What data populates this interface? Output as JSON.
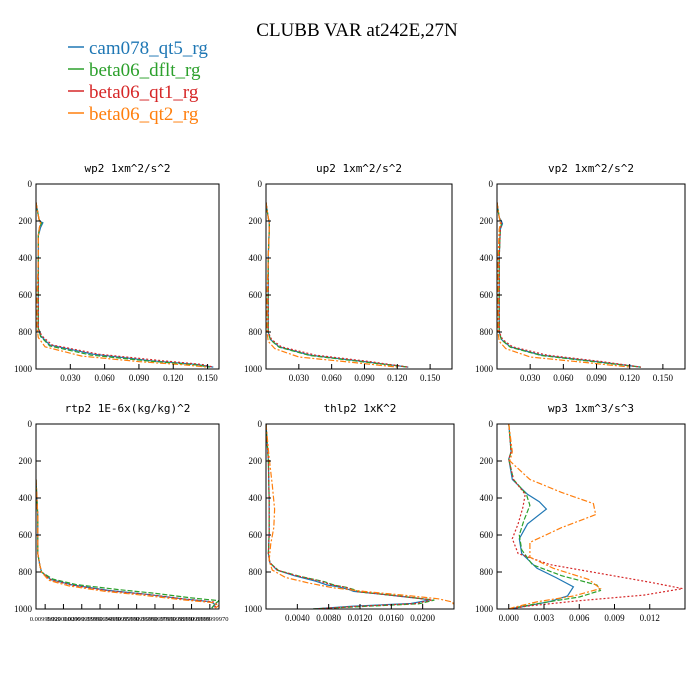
{
  "figure": {
    "title": "CLUBB VAR at242E,27N"
  },
  "legend": [
    {
      "name": "cam078_qt5_rg",
      "color": "#1f77b4"
    },
    {
      "name": "beta06_dflt_rg",
      "color": "#2ca02c"
    },
    {
      "name": "beta06_qt1_rg",
      "color": "#d62728"
    },
    {
      "name": "beta06_qt2_rg",
      "color": "#ff7f0e"
    }
  ],
  "chart_data": [
    {
      "type": "line",
      "title": "wp2  1xm^2/s^2",
      "xlim": [
        0,
        0.16
      ],
      "ylim": [
        1000,
        0
      ],
      "xticks": [
        0.03,
        0.06,
        0.09,
        0.12,
        0.15
      ],
      "xtick_labels": [
        "0.030",
        "0.060",
        "0.090",
        "0.120",
        "0.150"
      ],
      "yticks": [
        0,
        200,
        400,
        600,
        800,
        1000
      ],
      "ytick_labels": [
        "0",
        "200",
        "400",
        "600",
        "800",
        "1000"
      ],
      "series": [
        {
          "name": "cam078_qt5_rg",
          "x": [
            0,
            0.002,
            0.003,
            0.006,
            0.004,
            0.002,
            0.002,
            0.002,
            0.002,
            0.004,
            0.012,
            0.05,
            0.1,
            0.14,
            0.155
          ],
          "y": [
            100,
            170,
            200,
            210,
            235,
            280,
            400,
            600,
            780,
            820,
            870,
            920,
            955,
            975,
            990
          ]
        },
        {
          "name": "beta06_dflt_rg",
          "x": [
            0,
            0.002,
            0.003,
            0.005,
            0.003,
            0.002,
            0.002,
            0.002,
            0.002,
            0.004,
            0.012,
            0.048,
            0.1,
            0.14,
            0.152
          ],
          "y": [
            100,
            170,
            200,
            210,
            235,
            280,
            400,
            600,
            780,
            825,
            875,
            925,
            958,
            978,
            990
          ]
        },
        {
          "name": "beta06_qt1_rg",
          "x": [
            0,
            0.002,
            0.003,
            0.004,
            0.003,
            0.002,
            0.002,
            0.002,
            0.002,
            0.005,
            0.014,
            0.055,
            0.11,
            0.145,
            0.155
          ],
          "y": [
            100,
            170,
            200,
            210,
            235,
            280,
            400,
            600,
            780,
            820,
            870,
            920,
            955,
            975,
            990
          ]
        },
        {
          "name": "beta06_qt2_rg",
          "x": [
            0,
            0.002,
            0.003,
            0.004,
            0.003,
            0.002,
            0.002,
            0.001,
            0.001,
            0.002,
            0.008,
            0.04,
            0.09,
            0.13,
            0.15
          ],
          "y": [
            100,
            170,
            200,
            210,
            235,
            280,
            400,
            600,
            780,
            830,
            880,
            930,
            960,
            978,
            990
          ]
        }
      ]
    },
    {
      "type": "line",
      "title": "up2  1xm^2/s^2",
      "xlim": [
        0,
        0.17
      ],
      "ylim": [
        1000,
        0
      ],
      "xticks": [
        0.03,
        0.06,
        0.09,
        0.12,
        0.15
      ],
      "xtick_labels": [
        "0.030",
        "0.060",
        "0.090",
        "0.120",
        "0.150"
      ],
      "yticks": [
        0,
        200,
        400,
        600,
        800,
        1000
      ],
      "ytick_labels": [
        "0",
        "200",
        "400",
        "600",
        "800",
        "1000"
      ],
      "series": [
        {
          "name": "cam078_qt5_rg",
          "x": [
            0,
            0.002,
            0.003,
            0.003,
            0.002,
            0.002,
            0.002,
            0.004,
            0.012,
            0.04,
            0.09,
            0.13
          ],
          "y": [
            100,
            180,
            210,
            240,
            400,
            600,
            800,
            840,
            880,
            925,
            960,
            990
          ]
        },
        {
          "name": "beta06_dflt_rg",
          "x": [
            0,
            0.002,
            0.003,
            0.003,
            0.002,
            0.002,
            0.002,
            0.004,
            0.012,
            0.04,
            0.09,
            0.13
          ],
          "y": [
            100,
            180,
            210,
            240,
            400,
            600,
            800,
            842,
            882,
            927,
            962,
            990
          ]
        },
        {
          "name": "beta06_qt1_rg",
          "x": [
            0,
            0.002,
            0.003,
            0.003,
            0.002,
            0.002,
            0.002,
            0.005,
            0.014,
            0.045,
            0.095,
            0.13
          ],
          "y": [
            100,
            180,
            210,
            240,
            400,
            600,
            800,
            840,
            880,
            925,
            960,
            990
          ]
        },
        {
          "name": "beta06_qt2_rg",
          "x": [
            0,
            0.002,
            0.003,
            0.003,
            0.002,
            0.001,
            0.001,
            0.002,
            0.008,
            0.03,
            0.08,
            0.12
          ],
          "y": [
            100,
            180,
            210,
            240,
            400,
            600,
            800,
            850,
            890,
            935,
            965,
            990
          ]
        }
      ]
    },
    {
      "type": "line",
      "title": "vp2  1xm^2/s^2",
      "xlim": [
        0,
        0.17
      ],
      "ylim": [
        1000,
        0
      ],
      "xticks": [
        0.03,
        0.06,
        0.09,
        0.12,
        0.15
      ],
      "xtick_labels": [
        "0.030",
        "0.060",
        "0.090",
        "0.120",
        "0.150"
      ],
      "yticks": [
        0,
        200,
        400,
        600,
        800,
        1000
      ],
      "ytick_labels": [
        "0",
        "200",
        "400",
        "600",
        "800",
        "1000"
      ],
      "series": [
        {
          "name": "cam078_qt5_rg",
          "x": [
            0,
            0.002,
            0.004,
            0.005,
            0.003,
            0.002,
            0.002,
            0.002,
            0.004,
            0.012,
            0.04,
            0.09,
            0.13
          ],
          "y": [
            100,
            180,
            200,
            215,
            245,
            400,
            600,
            800,
            840,
            880,
            925,
            960,
            990
          ]
        },
        {
          "name": "beta06_dflt_rg",
          "x": [
            0,
            0.002,
            0.003,
            0.004,
            0.003,
            0.002,
            0.002,
            0.002,
            0.004,
            0.012,
            0.04,
            0.09,
            0.13
          ],
          "y": [
            100,
            180,
            200,
            215,
            245,
            400,
            600,
            800,
            842,
            882,
            927,
            962,
            990
          ]
        },
        {
          "name": "beta06_qt1_rg",
          "x": [
            0,
            0.002,
            0.003,
            0.004,
            0.003,
            0.002,
            0.002,
            0.002,
            0.005,
            0.014,
            0.045,
            0.095,
            0.13
          ],
          "y": [
            100,
            180,
            200,
            215,
            245,
            400,
            600,
            800,
            840,
            880,
            925,
            960,
            990
          ]
        },
        {
          "name": "beta06_qt2_rg",
          "x": [
            0,
            0.002,
            0.003,
            0.003,
            0.002,
            0.001,
            0.001,
            0.001,
            0.002,
            0.008,
            0.03,
            0.08,
            0.12
          ],
          "y": [
            100,
            180,
            200,
            215,
            245,
            400,
            600,
            800,
            850,
            890,
            935,
            965,
            990
          ]
        }
      ]
    },
    {
      "type": "line",
      "title": "rtp2  1E-6x(kg/kg)^2",
      "xlim": [
        0,
        1
      ],
      "ylim": [
        1000,
        0
      ],
      "xticks": [
        0.05,
        0.15,
        0.25,
        0.35,
        0.45,
        0.55,
        0.65,
        0.75,
        0.85,
        0.95
      ],
      "xtick_labels": [
        "0.00999999",
        "0.020000000",
        "0.0299999999",
        "0.0399999999",
        "0.0499999999",
        "0.0599999999",
        "0.0699999999",
        "0.0799999999",
        "0.0899999999",
        "0.0999999970"
      ],
      "yticks": [
        0,
        200,
        400,
        600,
        800,
        1000
      ],
      "ytick_labels": [
        "0",
        "200",
        "400",
        "600",
        "800",
        "1000"
      ],
      "series": [
        {
          "name": "cam078_qt5_rg",
          "x": [
            0,
            0.01,
            0.01,
            0.02,
            0.03,
            0.08,
            0.2,
            0.4,
            0.6,
            0.8,
            0.95,
            0.98,
            0.96
          ],
          "y": [
            300,
            500,
            700,
            760,
            800,
            840,
            870,
            900,
            920,
            945,
            960,
            975,
            995
          ]
        },
        {
          "name": "beta06_dflt_rg",
          "x": [
            0,
            0.01,
            0.01,
            0.02,
            0.03,
            0.09,
            0.22,
            0.45,
            0.65,
            0.85,
            1.0,
            0.98,
            0.96
          ],
          "y": [
            300,
            500,
            700,
            760,
            800,
            838,
            868,
            895,
            915,
            940,
            955,
            970,
            995
          ]
        },
        {
          "name": "beta06_qt1_rg",
          "x": [
            0,
            0.01,
            0.01,
            0.02,
            0.03,
            0.08,
            0.2,
            0.4,
            0.62,
            0.82,
            0.97,
            0.99,
            0.97
          ],
          "y": [
            300,
            500,
            700,
            760,
            800,
            842,
            872,
            902,
            922,
            947,
            962,
            977,
            995
          ]
        },
        {
          "name": "beta06_qt2_rg",
          "x": [
            0,
            0.01,
            0.01,
            0.02,
            0.03,
            0.07,
            0.18,
            0.38,
            0.58,
            0.8,
            0.96,
            1.0,
            0.98
          ],
          "y": [
            300,
            500,
            700,
            760,
            800,
            845,
            875,
            905,
            925,
            950,
            965,
            980,
            995
          ]
        }
      ]
    },
    {
      "type": "line",
      "title": "thlp2  1xK^2",
      "xlim": [
        0,
        0.024
      ],
      "ylim": [
        1000,
        0
      ],
      "xticks": [
        0.004,
        0.008,
        0.012,
        0.016,
        0.02
      ],
      "xtick_labels": [
        "0.0040",
        "0.0080",
        "0.0120",
        "0.0160",
        "0.0200"
      ],
      "yticks": [
        0,
        200,
        400,
        600,
        800,
        1000
      ],
      "ytick_labels": [
        "0",
        "200",
        "400",
        "600",
        "800",
        "1000"
      ],
      "series": [
        {
          "name": "cam078_qt5_rg",
          "x": [
            0,
            0.0003,
            0.0004,
            0.0004,
            0.0003,
            0.0005,
            0.0014,
            0.0036,
            0.0064,
            0.0078,
            0.0092,
            0.0106,
            0.0112,
            0.0158,
            0.021,
            0.0185,
            0.011,
            0.006
          ],
          "y": [
            0,
            200,
            400,
            600,
            700,
            750,
            790,
            820,
            850,
            870,
            880,
            895,
            905,
            925,
            950,
            970,
            985,
            1000
          ]
        },
        {
          "name": "beta06_dflt_rg",
          "x": [
            0,
            0.0003,
            0.0004,
            0.0004,
            0.0003,
            0.0005,
            0.0016,
            0.0042,
            0.0074,
            0.0088,
            0.0102,
            0.0114,
            0.0118,
            0.0165,
            0.0215,
            0.0195,
            0.012,
            0.006
          ],
          "y": [
            0,
            200,
            400,
            600,
            700,
            750,
            792,
            822,
            852,
            872,
            882,
            897,
            907,
            927,
            952,
            972,
            987,
            1000
          ]
        },
        {
          "name": "beta06_qt1_rg",
          "x": [
            0,
            0.0003,
            0.0004,
            0.0004,
            0.0003,
            0.0005,
            0.0015,
            0.004,
            0.007,
            0.0085,
            0.01,
            0.0111,
            0.0116,
            0.016,
            0.0212,
            0.019,
            0.0115,
            0.006
          ],
          "y": [
            0,
            200,
            400,
            600,
            700,
            750,
            791,
            821,
            851,
            871,
            881,
            896,
            906,
            926,
            951,
            971,
            986,
            1000
          ]
        },
        {
          "name": "beta06_qt2_rg",
          "x": [
            0,
            0.0004,
            0.0008,
            0.0011,
            0.001,
            0.0006,
            0.0004,
            0.0008,
            0.0025,
            0.0055,
            0.0085,
            0.0125,
            0.0175,
            0.022,
            0.0238,
            0.024
          ],
          "y": [
            0,
            180,
            330,
            460,
            560,
            650,
            740,
            790,
            830,
            860,
            885,
            905,
            925,
            945,
            962,
            980
          ]
        }
      ]
    },
    {
      "type": "line",
      "title": "wp3  1xm^3/s^3",
      "xlim": [
        -0.001,
        0.015
      ],
      "ylim": [
        1000,
        0
      ],
      "xticks": [
        0.0,
        0.003,
        0.006,
        0.009,
        0.012
      ],
      "xtick_labels": [
        "0.000",
        "0.003",
        "0.006",
        "0.009",
        "0.012"
      ],
      "yticks": [
        0,
        200,
        400,
        600,
        800,
        1000
      ],
      "ytick_labels": [
        "0",
        "200",
        "400",
        "600",
        "800",
        "1000"
      ],
      "series": [
        {
          "name": "cam078_qt5_rg",
          "x": [
            0,
            0.0002,
            0.0,
            0.0003,
            0.0016,
            0.0026,
            0.0032,
            0.0016,
            0.0009,
            0.0011,
            0.0024,
            0.004,
            0.0055,
            0.005,
            0.0035,
            0.001,
            0
          ],
          "y": [
            0,
            150,
            190,
            300,
            380,
            420,
            460,
            540,
            620,
            700,
            780,
            830,
            880,
            930,
            960,
            990,
            1000
          ]
        },
        {
          "name": "beta06_dflt_rg",
          "x": [
            0,
            0.0002,
            0.0,
            0.0004,
            0.0015,
            0.0018,
            0.0013,
            0.0009,
            0.0011,
            0.002,
            0.0045,
            0.0075,
            0.0078,
            0.006,
            0.003,
            0.0008,
            0
          ],
          "y": [
            0,
            150,
            190,
            300,
            380,
            440,
            520,
            600,
            680,
            760,
            820,
            870,
            900,
            935,
            965,
            990,
            1000
          ]
        },
        {
          "name": "beta06_qt1_rg",
          "x": [
            0,
            0.0002,
            0.0,
            0.0004,
            0.0014,
            0.0012,
            0.0008,
            0.0003,
            0.0008,
            0.0035,
            0.008,
            0.012,
            0.0148,
            0.0115,
            0.006,
            0.0015,
            0
          ],
          "y": [
            0,
            150,
            190,
            300,
            380,
            450,
            540,
            620,
            700,
            760,
            810,
            855,
            890,
            925,
            955,
            985,
            1000
          ]
        },
        {
          "name": "beta06_qt2_rg",
          "x": [
            0,
            0.0003,
            0.0001,
            0.0018,
            0.0045,
            0.0072,
            0.0074,
            0.0045,
            0.0018,
            0.0018,
            0.0038,
            0.0068,
            0.0078,
            0.0055,
            0.0025,
            0.0005,
            0
          ],
          "y": [
            0,
            150,
            200,
            300,
            370,
            430,
            490,
            560,
            640,
            720,
            780,
            840,
            890,
            930,
            960,
            990,
            1000
          ]
        }
      ]
    }
  ]
}
